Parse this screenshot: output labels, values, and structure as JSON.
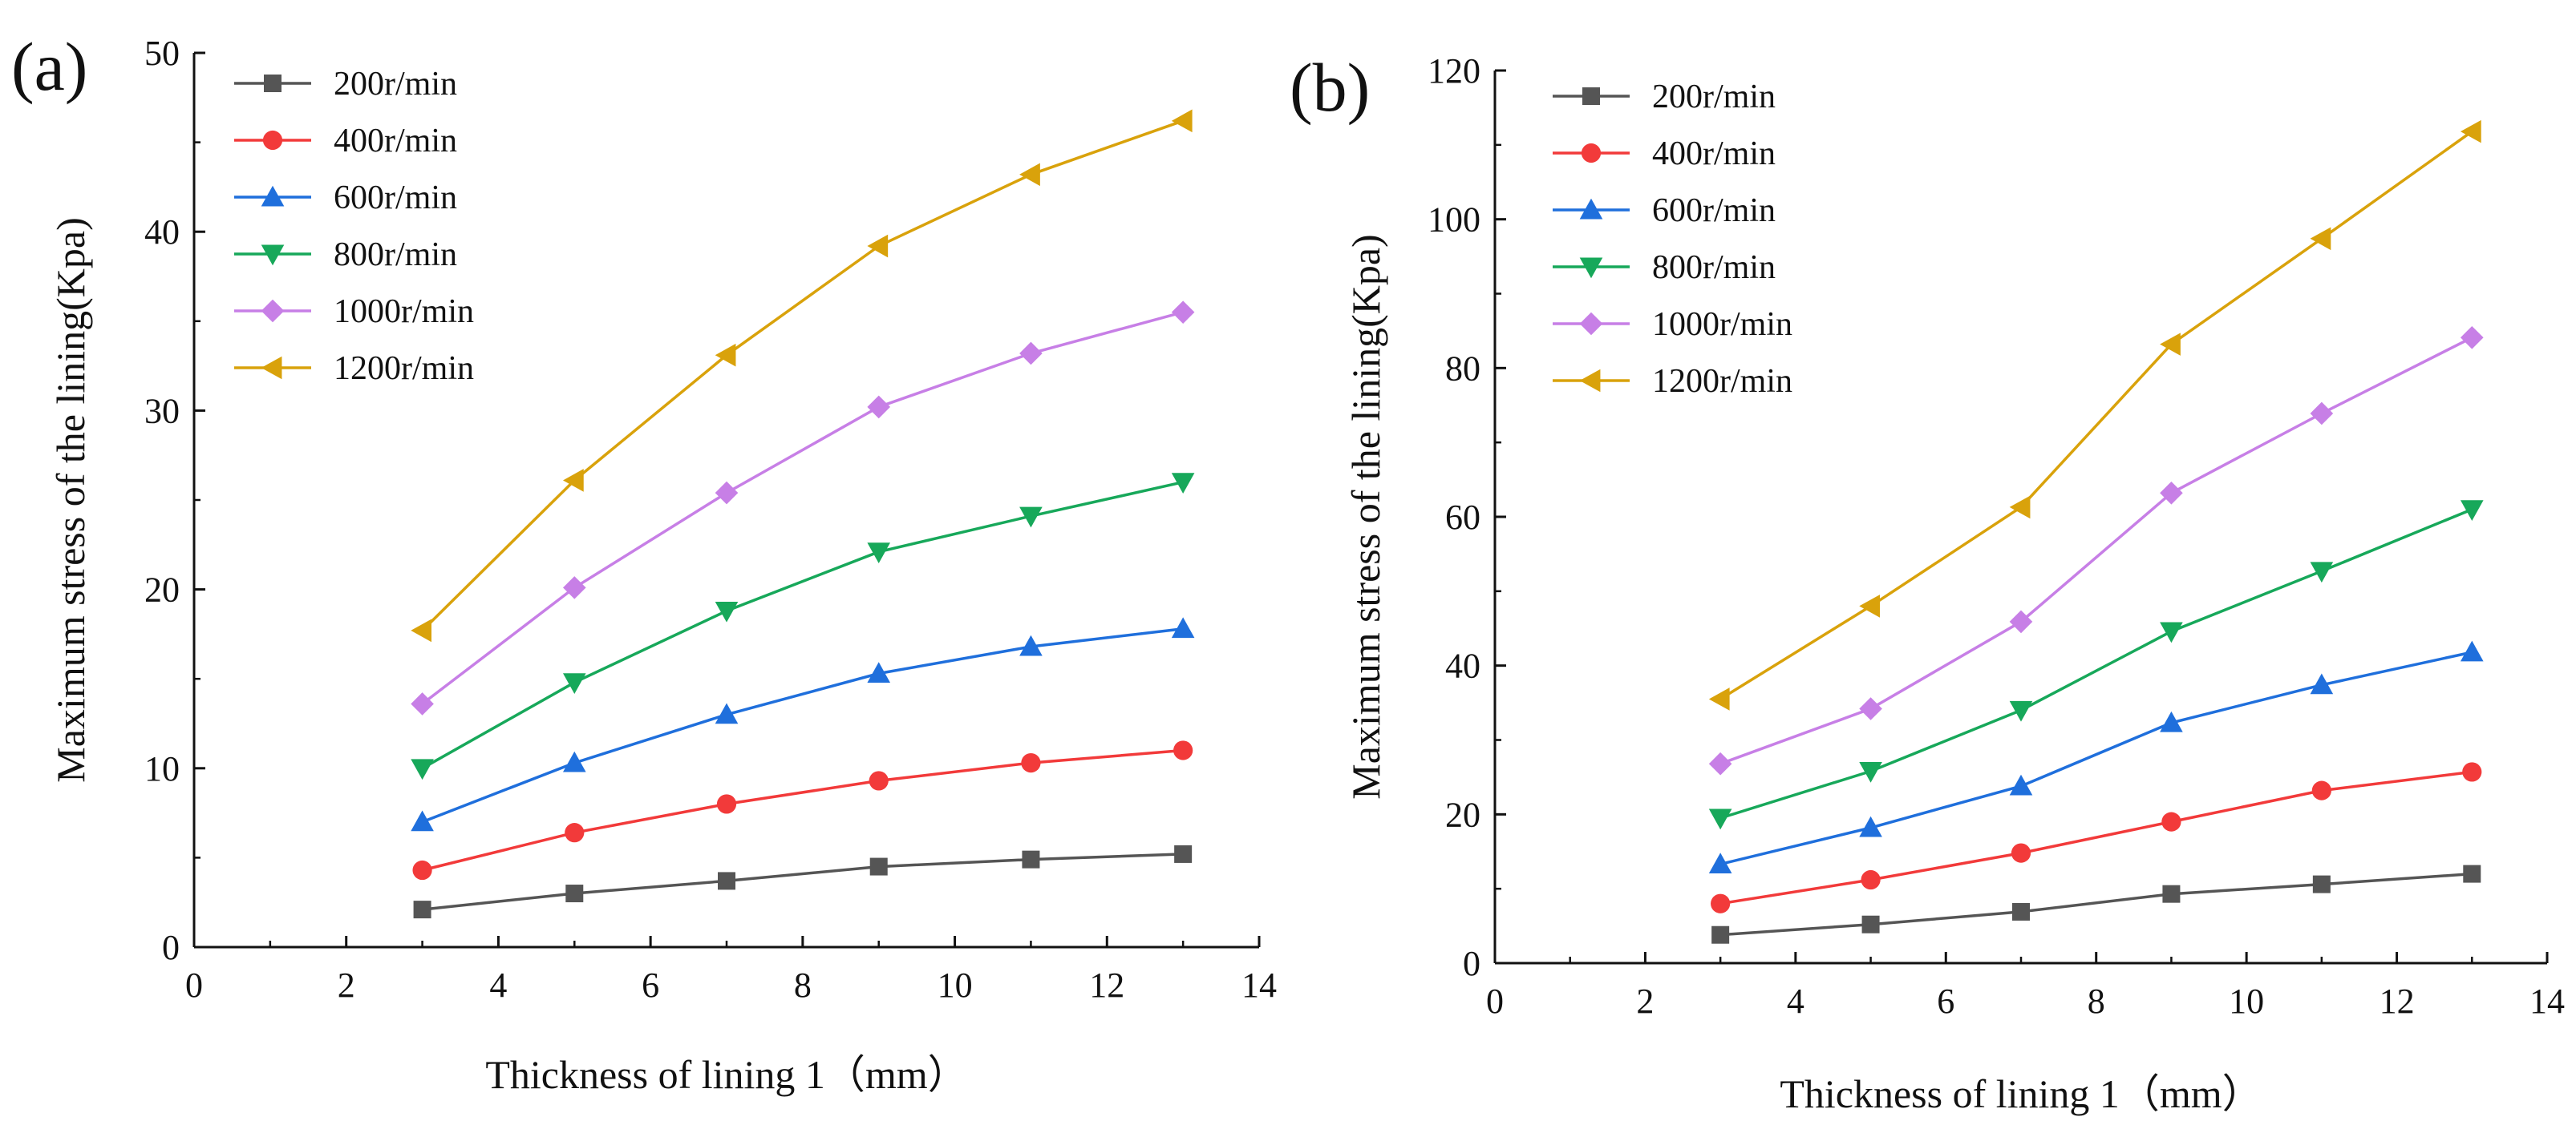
{
  "chart_data": [
    {
      "panel": "(a)",
      "type": "line",
      "xlabel": "Thickness of lining 1（mm）",
      "ylabel": "Maximum stress of the lining(Kpa)",
      "xlim": [
        0,
        14
      ],
      "ylim": [
        0,
        50
      ],
      "xticks": [
        0,
        2,
        4,
        6,
        8,
        10,
        12,
        14
      ],
      "yticks": [
        0,
        10,
        20,
        30,
        40,
        50
      ],
      "x": [
        3,
        5,
        7,
        9,
        11,
        13
      ],
      "legend_position": "top-left",
      "series": [
        {
          "name": "200r/min",
          "marker": "square",
          "color": "#555555",
          "values": [
            2.1,
            3.0,
            3.7,
            4.5,
            4.9,
            5.2
          ]
        },
        {
          "name": "400r/min",
          "marker": "circle",
          "color": "#f23a3a",
          "values": [
            4.3,
            6.4,
            8.0,
            9.3,
            10.3,
            11.0
          ]
        },
        {
          "name": "600r/min",
          "marker": "triangle-up",
          "color": "#1f6fdc",
          "values": [
            7.0,
            10.3,
            13.0,
            15.3,
            16.8,
            17.8
          ]
        },
        {
          "name": "800r/min",
          "marker": "triangle-down",
          "color": "#17a85a",
          "values": [
            10.0,
            14.8,
            18.8,
            22.1,
            24.1,
            26.0
          ]
        },
        {
          "name": "1000r/min",
          "marker": "diamond",
          "color": "#c77fe6",
          "values": [
            13.6,
            20.1,
            25.4,
            30.2,
            33.2,
            35.5
          ]
        },
        {
          "name": "1200r/min",
          "marker": "triangle-left",
          "color": "#d9a20b",
          "values": [
            17.7,
            26.1,
            33.1,
            39.2,
            43.2,
            46.2
          ]
        }
      ]
    },
    {
      "panel": "(b)",
      "type": "line",
      "xlabel": "Thickness of lining 1（mm）",
      "ylabel": "Maximum stress of the lining(Kpa)",
      "xlim": [
        0,
        14
      ],
      "ylim": [
        0,
        120
      ],
      "xticks": [
        0,
        2,
        4,
        6,
        8,
        10,
        12,
        14
      ],
      "yticks": [
        0,
        20,
        40,
        60,
        80,
        100,
        120
      ],
      "x": [
        3,
        5,
        7,
        9,
        11,
        13
      ],
      "legend_position": "top-left",
      "series": [
        {
          "name": "200r/min",
          "marker": "square",
          "color": "#555555",
          "values": [
            3.8,
            5.2,
            6.9,
            9.3,
            10.6,
            12.0
          ]
        },
        {
          "name": "400r/min",
          "marker": "circle",
          "color": "#f23a3a",
          "values": [
            8.0,
            11.2,
            14.8,
            19.0,
            23.2,
            25.7
          ]
        },
        {
          "name": "600r/min",
          "marker": "triangle-up",
          "color": "#1f6fdc",
          "values": [
            13.3,
            18.2,
            23.8,
            32.3,
            37.4,
            41.8
          ]
        },
        {
          "name": "800r/min",
          "marker": "triangle-down",
          "color": "#17a85a",
          "values": [
            19.5,
            25.8,
            34.0,
            44.6,
            52.7,
            61.0
          ]
        },
        {
          "name": "1000r/min",
          "marker": "diamond",
          "color": "#c77fe6",
          "values": [
            26.8,
            34.2,
            45.9,
            63.2,
            73.9,
            84.1
          ]
        },
        {
          "name": "1200r/min",
          "marker": "triangle-left",
          "color": "#d9a20b",
          "values": [
            35.5,
            48.0,
            61.3,
            83.2,
            97.4,
            111.8
          ]
        }
      ]
    }
  ]
}
